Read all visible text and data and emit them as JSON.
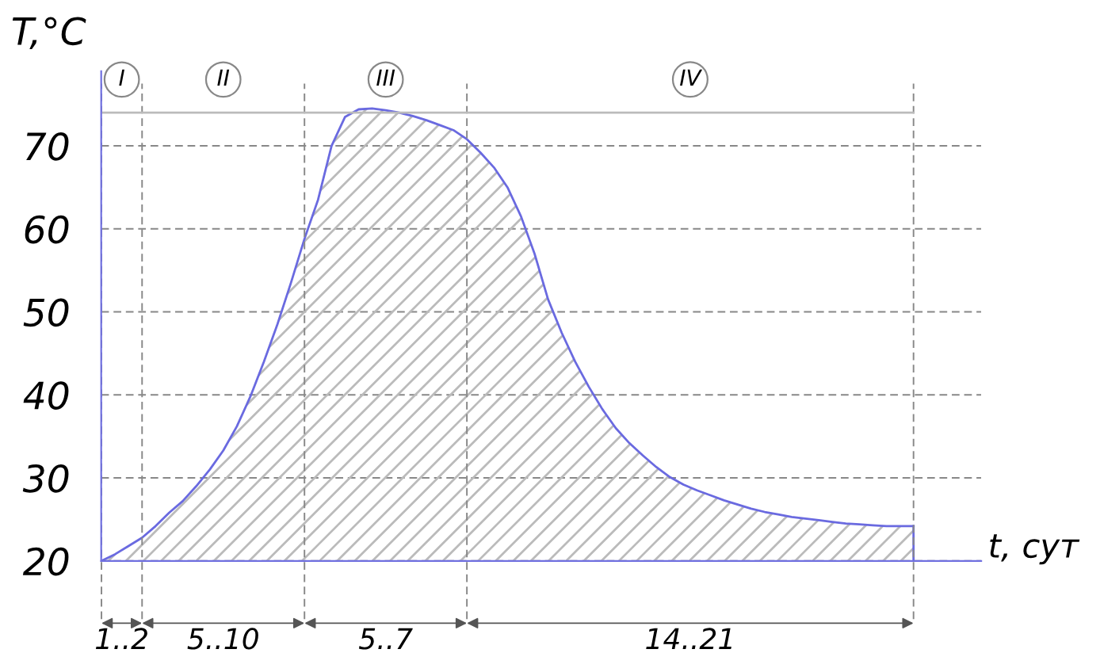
{
  "chart_data": {
    "type": "area",
    "xlabel": "t, сут",
    "ylabel": "T,°C",
    "categories": [
      null,
      null,
      null,
      null,
      null,
      null,
      null,
      null,
      null,
      null,
      null,
      null,
      null,
      null,
      null,
      null,
      null,
      null,
      null,
      null,
      null,
      null,
      null,
      null,
      null,
      null,
      null,
      null,
      null,
      null,
      null,
      null,
      null,
      null,
      null,
      null,
      null,
      null,
      null,
      null,
      null,
      null,
      null,
      null,
      null,
      null,
      null,
      null,
      null,
      null,
      null,
      null,
      null,
      null,
      null,
      null,
      null,
      null,
      null,
      null,
      null
    ],
    "series": [
      {
        "color": "#6a6ae0",
        "values": [
          20,
          20.8,
          21.8,
          22.8,
          24.2,
          25.8,
          27.2,
          29,
          31,
          33.3,
          36.2,
          39.8,
          44,
          48.5,
          53.5,
          58.8,
          63.5,
          70,
          73.5,
          74.4,
          74.5,
          74.3,
          74,
          73.6,
          73.1,
          72.5,
          71.9,
          70.8,
          69.2,
          67.4,
          65,
          61.5,
          57,
          51.5,
          47.5,
          44,
          41,
          38.3,
          36,
          34.2,
          32.7,
          31.3,
          30.1,
          29.2,
          28.5,
          27.9,
          27.3,
          26.8,
          26.3,
          25.9,
          25.6,
          25.3,
          25.1,
          24.9,
          24.7,
          24.5,
          24.4,
          24.3,
          24.2,
          24.2,
          24.2
        ]
      }
    ],
    "ylim": [
      20,
      79
    ],
    "yticks": [
      20,
      30,
      40,
      50,
      60,
      70
    ],
    "grid": true,
    "ref_lines": [
      {
        "axis": "y",
        "value": 74,
        "color": "#bbbbbb",
        "line_style": "solid"
      }
    ],
    "annotations": [
      "I",
      "II",
      "III",
      "IV",
      "1..2",
      "5..10",
      "5..7",
      "14..21"
    ]
  }
}
